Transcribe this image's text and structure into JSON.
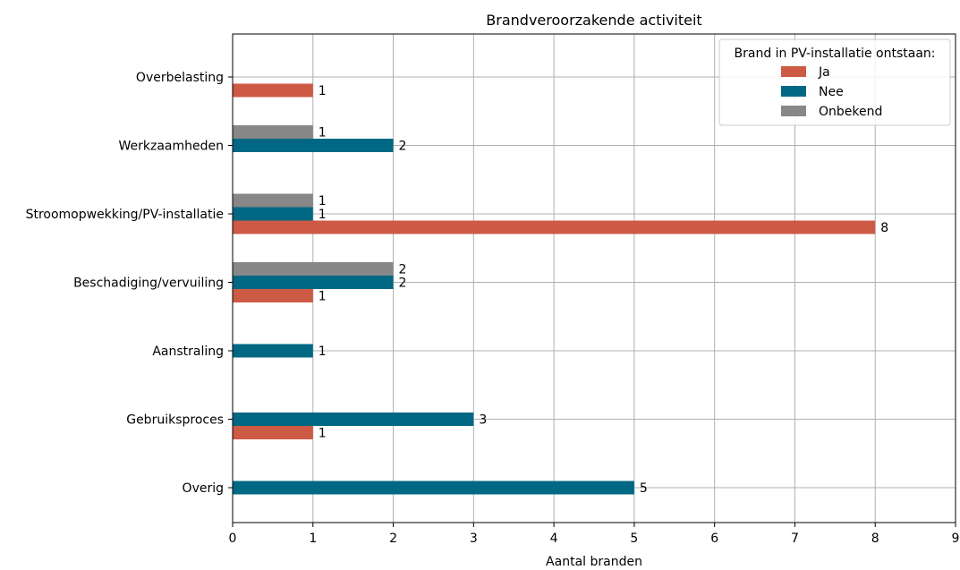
{
  "chart_data": {
    "type": "bar",
    "orientation": "horizontal",
    "title": "Brandveroorzakende activiteit",
    "xlabel": "Aantal branden",
    "ylabel": "",
    "xlim": [
      0,
      9
    ],
    "xticks": [
      "0",
      "1",
      "2",
      "3",
      "4",
      "5",
      "6",
      "7",
      "8",
      "9"
    ],
    "grid": true,
    "legend_position": "top-right",
    "legend_title": "Brand in PV-installatie ontstaan:",
    "categories": [
      "Overbelasting",
      "Werkzaamheden",
      "Stroomopwekking/PV-installatie",
      "Beschadiging/vervuiling",
      "Aanstraling",
      "Gebruiksproces",
      "Overig"
    ],
    "series": [
      {
        "name": "Ja",
        "color": "#cc5a45",
        "values": [
          1,
          0,
          8,
          1,
          0,
          1,
          0
        ]
      },
      {
        "name": "Nee",
        "color": "#006883",
        "values": [
          0,
          2,
          1,
          2,
          1,
          3,
          5
        ]
      },
      {
        "name": "Onbekend",
        "color": "#878787",
        "values": [
          0,
          1,
          1,
          2,
          0,
          0,
          0
        ]
      }
    ]
  }
}
